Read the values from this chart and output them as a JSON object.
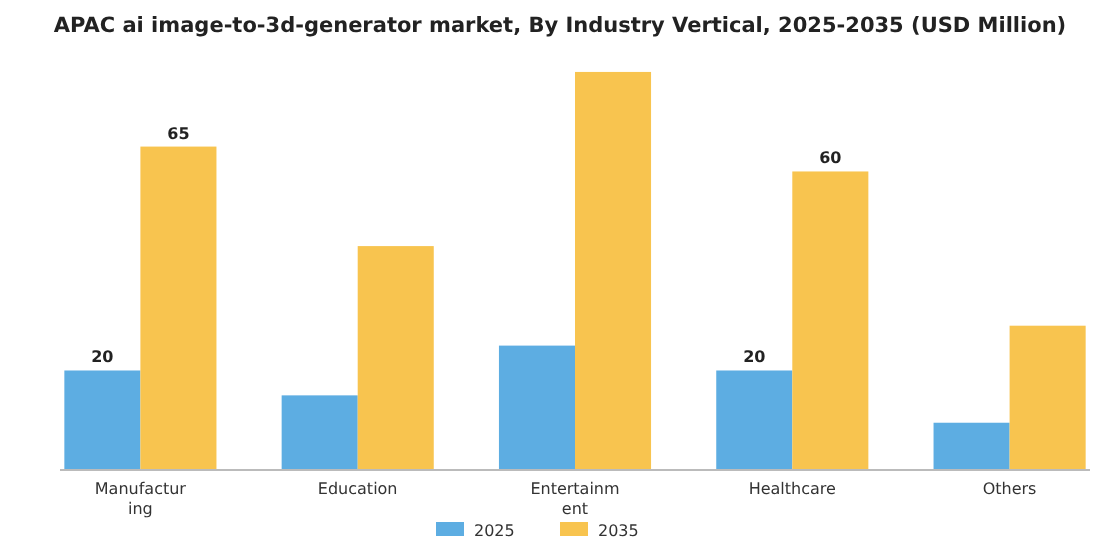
{
  "chart_data": {
    "type": "bar",
    "title": "APAC ai image-to-3d-generator market, By Industry Vertical, 2025-2035 (USD Million)",
    "categories": [
      "Manufacturing",
      "Education",
      "Entertainment",
      "Healthcare",
      "Others"
    ],
    "series": [
      {
        "name": "2025",
        "color": "#5dade2",
        "values": [
          20,
          15,
          25,
          20,
          9.5
        ],
        "value_labels": [
          "20",
          null,
          null,
          "20",
          null
        ]
      },
      {
        "name": "2035",
        "color": "#f8c44f",
        "values": [
          65,
          45,
          80,
          60,
          29
        ],
        "value_labels": [
          "65",
          null,
          null,
          "60",
          null
        ]
      }
    ],
    "legend": "bottom",
    "grid": false
  }
}
